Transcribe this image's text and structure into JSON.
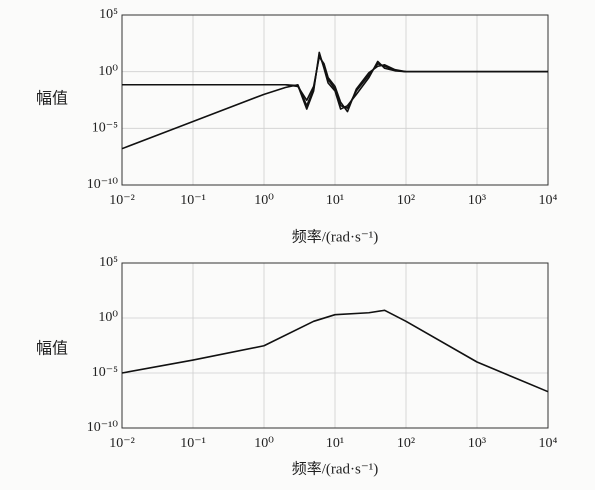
{
  "chart_data": [
    {
      "type": "line",
      "xscale": "log",
      "yscale": "log",
      "grid": true,
      "y_label": "幅值",
      "x_label": "频率/(rad·s⁻¹)",
      "xlim": [
        0.01,
        10000
      ],
      "ylim": [
        1e-10,
        100000
      ],
      "xticks": [
        {
          "value": 0.01,
          "label": "10⁻²"
        },
        {
          "value": 0.1,
          "label": "10⁻¹"
        },
        {
          "value": 1,
          "label": "10⁰"
        },
        {
          "value": 10,
          "label": "10¹"
        },
        {
          "value": 100,
          "label": "10²"
        },
        {
          "value": 1000,
          "label": "10³"
        },
        {
          "value": 10000,
          "label": "10⁴"
        }
      ],
      "yticks": [
        {
          "value": 1e-10,
          "label": "10⁻¹⁰"
        },
        {
          "value": 1e-05,
          "label": "10⁻⁵"
        },
        {
          "value": 1,
          "label": "10⁰"
        },
        {
          "value": 100000,
          "label": "10⁵"
        }
      ],
      "x": [
        0.01,
        0.1,
        1,
        2,
        3,
        4,
        5,
        6,
        7,
        8,
        10,
        12,
        15,
        20,
        30,
        40,
        50,
        70,
        100,
        1000,
        10000
      ],
      "series": [
        {
          "color": "#111111",
          "values": [
            0.07,
            0.07,
            0.07,
            0.07,
            0.06,
            0.0005,
            0.02,
            50,
            2,
            0.1,
            0.02,
            0.0005,
            0.001,
            0.01,
            0.3,
            8,
            2,
            1.2,
            1,
            1,
            1
          ]
        },
        {
          "color": "#111111",
          "values": [
            0.07,
            0.07,
            0.07,
            0.07,
            0.05,
            0.003,
            0.05,
            20,
            5,
            0.3,
            0.05,
            0.002,
            0.0003,
            0.03,
            0.8,
            3,
            4,
            1.5,
            1,
            1,
            1
          ]
        },
        {
          "color": "#111111",
          "values": [
            1.6e-07,
            4e-05,
            0.01,
            0.04,
            0.07,
            0.001,
            0.03,
            30,
            3,
            0.2,
            0.03,
            0.001,
            0.0006,
            0.02,
            0.5,
            5,
            3,
            1.3,
            1,
            1,
            1
          ]
        }
      ]
    },
    {
      "type": "line",
      "xscale": "log",
      "yscale": "log",
      "grid": true,
      "y_label": "幅值",
      "x_label": "频率/(rad·s⁻¹)",
      "xlim": [
        0.01,
        10000
      ],
      "ylim": [
        1e-10,
        100000
      ],
      "xticks": [
        {
          "value": 0.01,
          "label": "10⁻²"
        },
        {
          "value": 0.1,
          "label": "10⁻¹"
        },
        {
          "value": 1,
          "label": "10⁰"
        },
        {
          "value": 10,
          "label": "10¹"
        },
        {
          "value": 100,
          "label": "10²"
        },
        {
          "value": 1000,
          "label": "10³"
        },
        {
          "value": 10000,
          "label": "10⁴"
        }
      ],
      "yticks": [
        {
          "value": 1e-10,
          "label": "10⁻¹⁰"
        },
        {
          "value": 1e-05,
          "label": "10⁻⁵"
        },
        {
          "value": 1,
          "label": "10⁰"
        },
        {
          "value": 100000,
          "label": "10⁵"
        }
      ],
      "x": [
        0.01,
        0.1,
        1,
        5,
        10,
        30,
        50,
        100,
        1000,
        10000
      ],
      "series": [
        {
          "color": "#111111",
          "values": [
            1e-05,
            0.00015,
            0.003,
            0.5,
            2,
            3,
            5,
            0.5,
            0.0001,
            2e-07
          ]
        }
      ]
    }
  ]
}
